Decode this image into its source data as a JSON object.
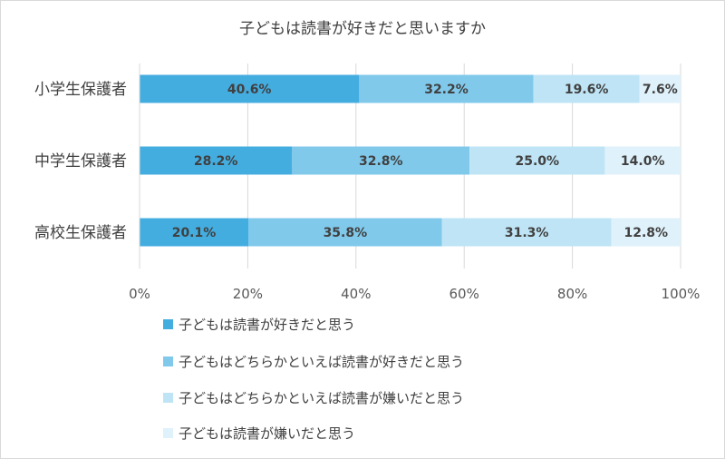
{
  "chart_data": {
    "type": "bar",
    "orientation": "horizontal",
    "stacked": true,
    "title": "子どもは読書が好きだと思いますか",
    "categories": [
      "小学生保護者",
      "中学生保護者",
      "高校生保護者"
    ],
    "series": [
      {
        "name": "子どもは読書が好きだと思う",
        "values": [
          40.6,
          28.2,
          20.1
        ],
        "color": "#44ADE0"
      },
      {
        "name": "子どもはどちらかといえば読書が好きだと思う",
        "values": [
          32.2,
          32.8,
          35.8
        ],
        "color": "#80C9EB"
      },
      {
        "name": "子どもはどちらかといえば読書が嫌いだと思う",
        "values": [
          19.6,
          25.0,
          31.3
        ],
        "color": "#BFE4F5"
      },
      {
        "name": "子どもは読書が嫌いだと思う",
        "values": [
          7.6,
          14.0,
          12.8
        ],
        "color": "#DFF1FA"
      }
    ],
    "data_labels": [
      [
        "40.6%",
        "32.2%",
        "19.6%",
        "7.6%"
      ],
      [
        "28.2%",
        "32.8%",
        "25.0%",
        "14.0%"
      ],
      [
        "20.1%",
        "35.8%",
        "31.3%",
        "12.8%"
      ]
    ],
    "x_ticks": [
      "0%",
      "20%",
      "40%",
      "60%",
      "80%",
      "100%"
    ],
    "xlim": [
      0,
      100
    ],
    "grid": true,
    "legend_position": "bottom"
  }
}
